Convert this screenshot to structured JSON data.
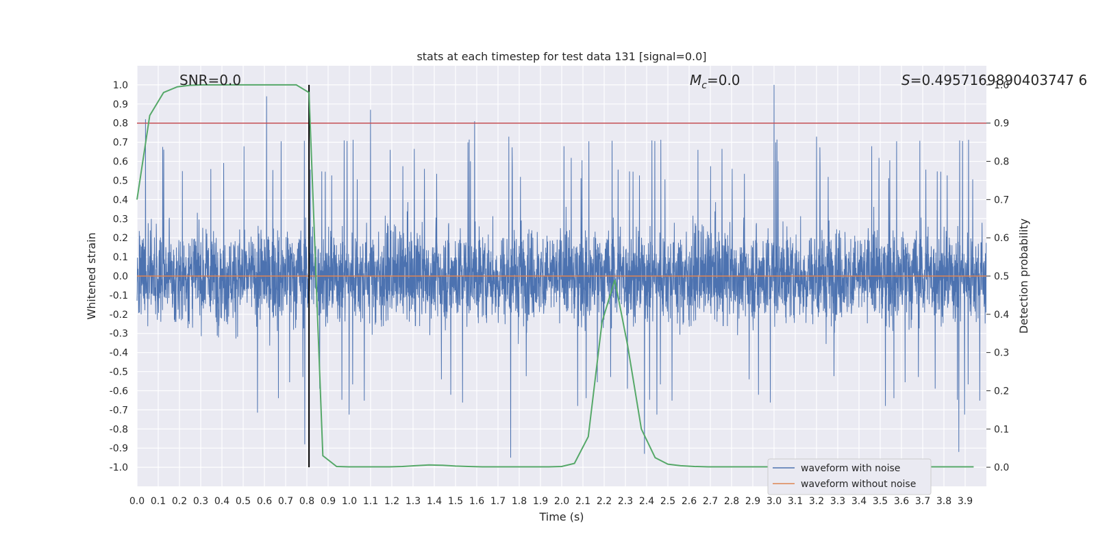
{
  "chart_data": {
    "type": "line",
    "title": "stats at each timestep for test data 131 [signal=0.0]",
    "xlabel": "Time (s)",
    "ylabel": "Whitened strain",
    "ylabel_right": "Detection probability",
    "xlim": [
      0.0,
      4.0
    ],
    "ylim": [
      -1.1,
      1.1
    ],
    "ylim_right": [
      -0.05,
      1.05
    ],
    "x_ticks": [
      "0.0",
      "0.1",
      "0.2",
      "0.3",
      "0.4",
      "0.5",
      "0.6",
      "0.7",
      "0.8",
      "0.9",
      "1.0",
      "1.1",
      "1.2",
      "1.3",
      "1.4",
      "1.5",
      "1.6",
      "1.7",
      "1.8",
      "1.9",
      "2.0",
      "2.1",
      "2.2",
      "2.3",
      "2.4",
      "2.5",
      "2.6",
      "2.7",
      "2.8",
      "2.9",
      "3.0",
      "3.1",
      "3.2",
      "3.3",
      "3.4",
      "3.5",
      "3.6",
      "3.7",
      "3.8",
      "3.9"
    ],
    "y_ticks": [
      "1.0",
      "0.9",
      "0.8",
      "0.7",
      "0.6",
      "0.5",
      "0.4",
      "0.3",
      "0.2",
      "0.1",
      "0.0",
      "-0.1",
      "-0.2",
      "-0.3",
      "-0.4",
      "-0.5",
      "-0.6",
      "-0.7",
      "-0.8",
      "-0.9",
      "-1.0"
    ],
    "y_ticks_right": [
      "1.0",
      "0.9",
      "0.8",
      "0.7",
      "0.6",
      "0.5",
      "0.4",
      "0.3",
      "0.2",
      "0.1",
      "0.0"
    ],
    "grid": true,
    "legend_position": "bottom-right",
    "annotations": {
      "snr": "SNR=0.0",
      "mc_symbol": "M",
      "mc_sub": "c",
      "mc_value": "=0.0",
      "s_symbol": "S",
      "s_value": "=0.4957169890403747 6"
    },
    "series": [
      {
        "name": "waveform with noise",
        "color": "#4c72b0",
        "kind": "noise",
        "sample_rate": 1024,
        "amplitude_envelope": [
          0.5,
          0.95
        ],
        "peaks": [
          {
            "x": 0.04,
            "y": 0.82
          },
          {
            "x": 0.61,
            "y": 0.94
          },
          {
            "x": 1.1,
            "y": 0.87
          },
          {
            "x": 1.59,
            "y": 0.81
          },
          {
            "x": 3.0,
            "y": 1.0
          },
          {
            "x": 0.79,
            "y": -0.88
          },
          {
            "x": 1.76,
            "y": -0.95
          },
          {
            "x": 2.39,
            "y": -0.93
          },
          {
            "x": 3.87,
            "y": -0.92
          }
        ]
      },
      {
        "name": "waveform without noise",
        "color": "#dd8452",
        "kind": "constant",
        "y": 0.0
      },
      {
        "name": "detection probability",
        "color": "#55a868",
        "axis": "right",
        "x": [
          0.0,
          0.06,
          0.125,
          0.19,
          0.25,
          0.31,
          0.375,
          0.44,
          0.5,
          0.56,
          0.625,
          0.69,
          0.75,
          0.81,
          0.875,
          0.94,
          1.0,
          1.06,
          1.125,
          1.19,
          1.25,
          1.31,
          1.375,
          1.44,
          1.5,
          1.56,
          1.625,
          1.69,
          1.75,
          1.81,
          1.875,
          1.94,
          2.0,
          2.06,
          2.125,
          2.19,
          2.25,
          2.31,
          2.375,
          2.44,
          2.5,
          2.56,
          2.625,
          2.69,
          2.75,
          2.81,
          2.875,
          2.94,
          3.0,
          3.06,
          3.125,
          3.19,
          3.25,
          3.31,
          3.375,
          3.44,
          3.5,
          3.56,
          3.625,
          3.69,
          3.75,
          3.81,
          3.875,
          3.94
        ],
        "y": [
          0.7,
          0.92,
          0.98,
          0.995,
          0.999,
          1.0,
          1.0,
          1.0,
          1.0,
          1.0,
          1.0,
          1.0,
          1.0,
          0.98,
          0.03,
          0.002,
          0.001,
          0.001,
          0.001,
          0.001,
          0.002,
          0.004,
          0.006,
          0.005,
          0.003,
          0.002,
          0.001,
          0.001,
          0.001,
          0.001,
          0.001,
          0.001,
          0.002,
          0.01,
          0.08,
          0.38,
          0.49,
          0.32,
          0.1,
          0.025,
          0.008,
          0.004,
          0.002,
          0.001,
          0.001,
          0.001,
          0.001,
          0.001,
          0.001,
          0.001,
          0.001,
          0.001,
          0.001,
          0.001,
          0.001,
          0.001,
          0.001,
          0.001,
          0.001,
          0.001,
          0.001,
          0.001,
          0.001,
          0.001
        ]
      }
    ],
    "threshold": {
      "y": 0.9,
      "axis": "right",
      "color": "#c44e52"
    },
    "vline": {
      "x": 0.81,
      "y_range": [
        -1.0,
        1.0
      ],
      "color": "#000000"
    }
  }
}
